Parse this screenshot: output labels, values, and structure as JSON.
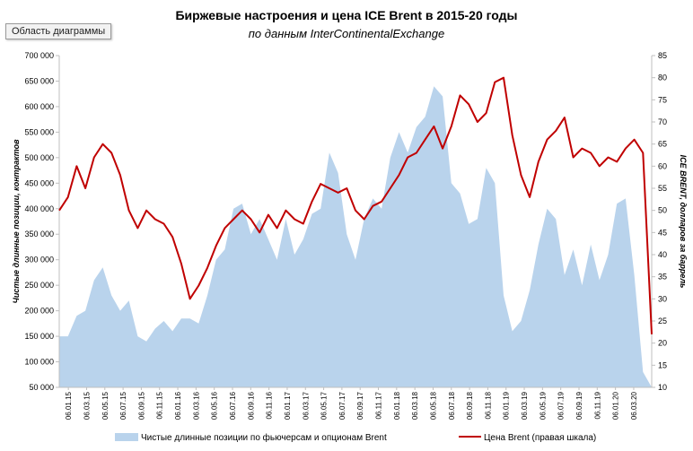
{
  "ui": {
    "chart_area_button": "Область диаграммы"
  },
  "chart_data": {
    "type": "area+line",
    "title": "Биржевые настроения и цена ICE Brent в 2015-20 годы",
    "subtitle": "по данным InterContinentalExchange",
    "ylabel_left": "Чистые длинные позиции, контрактов",
    "ylabel_right": "ICE BRENT, долларов за баррель",
    "y_left_ticks": [
      "700 000",
      "650 000",
      "600 000",
      "550 000",
      "500 000",
      "450 000",
      "400 000",
      "350 000",
      "300 000",
      "250 000",
      "200 000",
      "150 000",
      "100 000",
      "50 000"
    ],
    "y_left_range": [
      50000,
      700000
    ],
    "y_right_ticks": [
      "85",
      "80",
      "75",
      "70",
      "65",
      "60",
      "55",
      "50",
      "45",
      "40",
      "35",
      "30",
      "25",
      "20",
      "15",
      "10"
    ],
    "y_right_range": [
      10,
      85
    ],
    "x_ticks": [
      "06.01.15",
      "06.03.15",
      "06.05.15",
      "06.07.15",
      "06.09.15",
      "06.11.15",
      "06.01.16",
      "06.03.16",
      "06.05.16",
      "06.07.16",
      "06.09.16",
      "06.11.16",
      "06.01.17",
      "06.03.17",
      "06.05.17",
      "06.07.17",
      "06.09.17",
      "06.11.17",
      "06.01.18",
      "06.03.18",
      "06.05.18",
      "06.07.18",
      "06.09.18",
      "06.11.18",
      "06.01.19",
      "06.03.19",
      "06.05.19",
      "06.07.19",
      "06.09.19",
      "06.11.19",
      "06.01.20",
      "06.03.20"
    ],
    "x_range": [
      0,
      68
    ],
    "legend_position": "bottom",
    "colors": {
      "area": "#b9d3ec",
      "line": "#c00000",
      "axis": "#bfbfbf"
    },
    "series": [
      {
        "name": "Чистые длинные позиции по фьючерсам и опционам Brent",
        "type": "area",
        "points": [
          [
            0,
            150000
          ],
          [
            1,
            150000
          ],
          [
            2,
            190000
          ],
          [
            3,
            200000
          ],
          [
            4,
            260000
          ],
          [
            5,
            285000
          ],
          [
            6,
            230000
          ],
          [
            7,
            200000
          ],
          [
            8,
            220000
          ],
          [
            9,
            150000
          ],
          [
            10,
            140000
          ],
          [
            11,
            165000
          ],
          [
            12,
            180000
          ],
          [
            13,
            160000
          ],
          [
            14,
            185000
          ],
          [
            15,
            185000
          ],
          [
            16,
            175000
          ],
          [
            17,
            230000
          ],
          [
            18,
            300000
          ],
          [
            19,
            320000
          ],
          [
            20,
            400000
          ],
          [
            21,
            410000
          ],
          [
            22,
            350000
          ],
          [
            23,
            380000
          ],
          [
            24,
            340000
          ],
          [
            25,
            300000
          ],
          [
            26,
            380000
          ],
          [
            27,
            310000
          ],
          [
            28,
            340000
          ],
          [
            29,
            390000
          ],
          [
            30,
            400000
          ],
          [
            31,
            510000
          ],
          [
            32,
            470000
          ],
          [
            33,
            350000
          ],
          [
            34,
            300000
          ],
          [
            35,
            380000
          ],
          [
            36,
            420000
          ],
          [
            37,
            400000
          ],
          [
            38,
            500000
          ],
          [
            39,
            550000
          ],
          [
            40,
            510000
          ],
          [
            41,
            560000
          ],
          [
            42,
            580000
          ],
          [
            43,
            640000
          ],
          [
            44,
            620000
          ],
          [
            45,
            450000
          ],
          [
            46,
            430000
          ],
          [
            47,
            370000
          ],
          [
            48,
            380000
          ],
          [
            49,
            480000
          ],
          [
            50,
            450000
          ],
          [
            51,
            230000
          ],
          [
            52,
            160000
          ],
          [
            53,
            180000
          ],
          [
            54,
            240000
          ],
          [
            55,
            330000
          ],
          [
            56,
            400000
          ],
          [
            57,
            380000
          ],
          [
            58,
            270000
          ],
          [
            59,
            320000
          ],
          [
            60,
            250000
          ],
          [
            61,
            330000
          ],
          [
            62,
            260000
          ],
          [
            63,
            310000
          ],
          [
            64,
            410000
          ],
          [
            65,
            420000
          ],
          [
            66,
            270000
          ],
          [
            67,
            80000
          ],
          [
            68,
            50000
          ]
        ]
      },
      {
        "name": "Цена Brent (правая шкала)",
        "type": "line",
        "axis": "right",
        "points": [
          [
            0,
            50
          ],
          [
            1,
            53
          ],
          [
            2,
            60
          ],
          [
            3,
            55
          ],
          [
            4,
            62
          ],
          [
            5,
            65
          ],
          [
            6,
            63
          ],
          [
            7,
            58
          ],
          [
            8,
            50
          ],
          [
            9,
            46
          ],
          [
            10,
            50
          ],
          [
            11,
            48
          ],
          [
            12,
            47
          ],
          [
            13,
            44
          ],
          [
            14,
            38
          ],
          [
            15,
            30
          ],
          [
            16,
            33
          ],
          [
            17,
            37
          ],
          [
            18,
            42
          ],
          [
            19,
            46
          ],
          [
            20,
            48
          ],
          [
            21,
            50
          ],
          [
            22,
            48
          ],
          [
            23,
            45
          ],
          [
            24,
            49
          ],
          [
            25,
            46
          ],
          [
            26,
            50
          ],
          [
            27,
            48
          ],
          [
            28,
            47
          ],
          [
            29,
            52
          ],
          [
            30,
            56
          ],
          [
            31,
            55
          ],
          [
            32,
            54
          ],
          [
            33,
            55
          ],
          [
            34,
            50
          ],
          [
            35,
            48
          ],
          [
            36,
            51
          ],
          [
            37,
            52
          ],
          [
            38,
            55
          ],
          [
            39,
            58
          ],
          [
            40,
            62
          ],
          [
            41,
            63
          ],
          [
            42,
            66
          ],
          [
            43,
            69
          ],
          [
            44,
            64
          ],
          [
            45,
            69
          ],
          [
            46,
            76
          ],
          [
            47,
            74
          ],
          [
            48,
            70
          ],
          [
            49,
            72
          ],
          [
            50,
            79
          ],
          [
            51,
            80
          ],
          [
            52,
            67
          ],
          [
            53,
            58
          ],
          [
            54,
            53
          ],
          [
            55,
            61
          ],
          [
            56,
            66
          ],
          [
            57,
            68
          ],
          [
            58,
            71
          ],
          [
            59,
            62
          ],
          [
            60,
            64
          ],
          [
            61,
            63
          ],
          [
            62,
            60
          ],
          [
            63,
            62
          ],
          [
            64,
            61
          ],
          [
            65,
            64
          ],
          [
            66,
            66
          ],
          [
            67,
            63
          ],
          [
            68,
            22
          ]
        ]
      }
    ]
  }
}
